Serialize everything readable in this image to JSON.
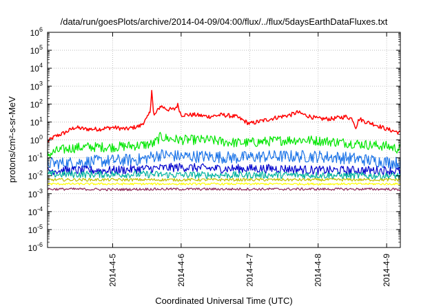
{
  "chart_data": {
    "type": "line",
    "title": "/data/run/goesPlots/archive/2014-04-09/04:00/flux/../flux/5daysEarthDataFluxes.txt",
    "xlabel": "Coordinated Universal Time (UTC)",
    "ylabel": "protons/cm²-s-sr-MeV",
    "yscale": "log",
    "ylim_exp": [
      -6,
      6
    ],
    "y_ticks": [
      {
        "base": "10",
        "exp": "-6"
      },
      {
        "base": "10",
        "exp": "-5"
      },
      {
        "base": "10",
        "exp": "-4"
      },
      {
        "base": "10",
        "exp": "-3"
      },
      {
        "base": "10",
        "exp": "-2"
      },
      {
        "base": "10",
        "exp": "-1"
      },
      {
        "base": "10",
        "exp": "0"
      },
      {
        "base": "10",
        "exp": "1"
      },
      {
        "base": "10",
        "exp": "2"
      },
      {
        "base": "10",
        "exp": "3"
      },
      {
        "base": "10",
        "exp": "4"
      },
      {
        "base": "10",
        "exp": "5"
      },
      {
        "base": "10",
        "exp": "6"
      }
    ],
    "xlim_days": [
      4.05,
      9.2
    ],
    "x_ticks": [
      {
        "label": "2014-4-5",
        "day": 5
      },
      {
        "label": "2014-4-6",
        "day": 6
      },
      {
        "label": "2014-4-7",
        "day": 7
      },
      {
        "label": "2014-4-8",
        "day": 8
      },
      {
        "label": "2014-4-9",
        "day": 9
      }
    ],
    "grid": true,
    "series": [
      {
        "color": "#ff0000",
        "x": [
          4.05,
          4.15,
          4.3,
          4.45,
          4.6,
          4.8,
          5.0,
          5.2,
          5.4,
          5.5,
          5.55,
          5.57,
          5.6,
          5.7,
          5.8,
          5.9,
          5.95,
          6.0,
          6.2,
          6.4,
          6.6,
          6.8,
          7.0,
          7.2,
          7.4,
          7.6,
          7.7,
          7.8,
          8.0,
          8.2,
          8.4,
          8.5,
          8.55,
          8.6,
          8.7,
          8.8,
          9.0,
          9.2
        ],
        "y": [
          0.8,
          1.5,
          2.5,
          5,
          4,
          4,
          5,
          4,
          6,
          15,
          40,
          700,
          20,
          80,
          50,
          50,
          90,
          25,
          25,
          20,
          25,
          20,
          8,
          12,
          18,
          25,
          35,
          25,
          15,
          15,
          20,
          15,
          5,
          15,
          10,
          8,
          4,
          2.5
        ]
      },
      {
        "color": "#00e600",
        "x": [
          4.05,
          4.2,
          4.4,
          4.6,
          4.8,
          5.0,
          5.2,
          5.4,
          5.6,
          5.7,
          5.8,
          6.0,
          6.2,
          6.4,
          6.6,
          6.8,
          7.0,
          7.2,
          7.4,
          7.6,
          7.8,
          8.0,
          8.2,
          8.4,
          8.6,
          8.8,
          9.0,
          9.2
        ],
        "y": [
          0.15,
          0.25,
          0.35,
          0.4,
          0.4,
          0.4,
          0.45,
          0.5,
          0.6,
          1.5,
          1.2,
          1.0,
          1.0,
          1.0,
          0.8,
          0.7,
          0.7,
          0.8,
          0.9,
          1.0,
          1.0,
          0.9,
          0.8,
          0.7,
          0.6,
          0.5,
          0.45,
          0.3
        ]
      },
      {
        "color": "#1a73e8",
        "x": [
          4.05,
          4.3,
          4.6,
          5.0,
          5.4,
          5.7,
          6.0,
          6.4,
          6.8,
          7.2,
          7.6,
          8.0,
          8.4,
          8.8,
          9.2
        ],
        "y": [
          0.05,
          0.05,
          0.06,
          0.07,
          0.08,
          0.15,
          0.12,
          0.12,
          0.1,
          0.12,
          0.12,
          0.12,
          0.1,
          0.07,
          0.05
        ]
      },
      {
        "color": "#0000cc",
        "x": [
          4.05,
          4.5,
          5.0,
          5.5,
          6.0,
          6.5,
          7.0,
          7.5,
          8.0,
          8.5,
          9.0,
          9.2
        ],
        "y": [
          0.02,
          0.02,
          0.02,
          0.025,
          0.03,
          0.025,
          0.025,
          0.025,
          0.02,
          0.02,
          0.02,
          0.018
        ]
      },
      {
        "color": "#00b3a0",
        "x": [
          4.05,
          4.5,
          5.0,
          5.5,
          6.0,
          6.5,
          7.0,
          7.5,
          8.0,
          8.5,
          9.0,
          9.2
        ],
        "y": [
          0.012,
          0.012,
          0.012,
          0.012,
          0.011,
          0.011,
          0.011,
          0.011,
          0.011,
          0.01,
          0.01,
          0.01
        ]
      },
      {
        "color": "#c0c000",
        "x": [
          4.05,
          4.5,
          5.0,
          5.5,
          6.0,
          6.5,
          7.0,
          7.5,
          8.0,
          8.5,
          9.0,
          9.2
        ],
        "y": [
          0.006,
          0.006,
          0.006,
          0.006,
          0.006,
          0.006,
          0.006,
          0.006,
          0.006,
          0.006,
          0.006,
          0.006
        ]
      },
      {
        "color": "#ffff00",
        "x": [
          4.05,
          4.5,
          5.0,
          5.5,
          6.0,
          6.5,
          7.0,
          7.5,
          8.0,
          8.5,
          9.0,
          9.2
        ],
        "y": [
          0.0035,
          0.0035,
          0.0035,
          0.0035,
          0.0035,
          0.0035,
          0.0035,
          0.0035,
          0.0035,
          0.0035,
          0.0035,
          0.0035
        ]
      },
      {
        "color": "#8b2252",
        "x": [
          4.05,
          4.5,
          5.0,
          5.5,
          6.0,
          6.5,
          7.0,
          7.5,
          8.0,
          8.5,
          9.0,
          9.2
        ],
        "y": [
          0.0018,
          0.0018,
          0.0017,
          0.0018,
          0.0018,
          0.0018,
          0.0018,
          0.0018,
          0.0018,
          0.0018,
          0.0018,
          0.0017
        ]
      }
    ]
  }
}
